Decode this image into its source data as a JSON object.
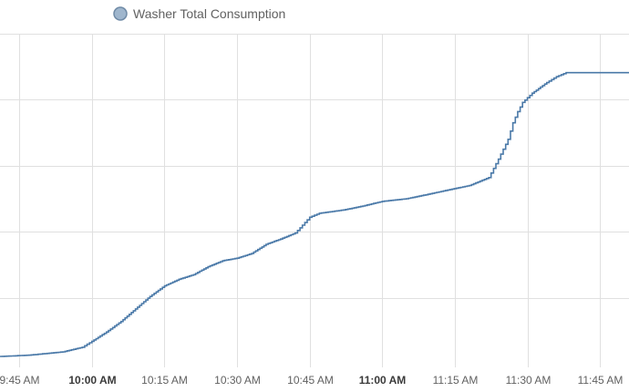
{
  "colors": {
    "series": "#4a79a8",
    "legend_swatch_fill": "#9fb6cd",
    "legend_swatch_stroke": "#6f8aa6",
    "grid": "#e0e0e0",
    "axis_text": "#616161"
  },
  "legend": {
    "label": "Washer Total Consumption"
  },
  "chart_data": {
    "type": "line",
    "step": true,
    "grid": true,
    "legend_position": "top-left",
    "title": "",
    "xlabel": "",
    "ylabel": "",
    "x_ticks": [
      {
        "time": "9:45",
        "label": "9:45 AM",
        "bold": false
      },
      {
        "time": "10:00",
        "label": "10:00 AM",
        "bold": true
      },
      {
        "time": "10:15",
        "label": "10:15 AM",
        "bold": false
      },
      {
        "time": "10:30",
        "label": "10:30 AM",
        "bold": false
      },
      {
        "time": "10:45",
        "label": "10:45 AM",
        "bold": false
      },
      {
        "time": "11:00",
        "label": "11:00 AM",
        "bold": true
      },
      {
        "time": "11:15",
        "label": "11:15 AM",
        "bold": false
      },
      {
        "time": "11:30",
        "label": "11:30 AM",
        "bold": false
      },
      {
        "time": "11:45",
        "label": "11:45 AM",
        "bold": false
      }
    ],
    "xlim": [
      "9:41",
      "11:51"
    ],
    "ylim": [
      0,
      5
    ],
    "y_gridlines": [
      1,
      2,
      3,
      4,
      5
    ],
    "series": [
      {
        "name": "Washer Total Consumption",
        "x": [
          "9:41",
          "9:47",
          "9:54",
          "9:58",
          "10:00",
          "10:03",
          "10:06",
          "10:09",
          "10:12",
          "10:15",
          "10:18",
          "10:21",
          "10:24",
          "10:27",
          "10:30",
          "10:33",
          "10:36",
          "10:39",
          "10:42",
          "10:44",
          "10:45",
          "10:47",
          "10:52",
          "10:56",
          "11:00",
          "11:05",
          "11:09",
          "11:14",
          "11:18",
          "11:22",
          "11:24",
          "11:26",
          "11:27",
          "11:28",
          "11:29",
          "11:31",
          "11:34",
          "11:36",
          "11:38",
          "11:39",
          "11:51"
        ],
        "y": [
          0.11,
          0.13,
          0.18,
          0.25,
          0.34,
          0.48,
          0.64,
          0.83,
          1.02,
          1.18,
          1.28,
          1.35,
          1.47,
          1.56,
          1.6,
          1.67,
          1.81,
          1.89,
          1.98,
          2.14,
          2.22,
          2.28,
          2.33,
          2.39,
          2.46,
          2.5,
          2.56,
          2.64,
          2.7,
          2.82,
          3.1,
          3.4,
          3.65,
          3.82,
          3.96,
          4.1,
          4.26,
          4.35,
          4.41,
          4.41,
          4.41
        ]
      }
    ]
  }
}
